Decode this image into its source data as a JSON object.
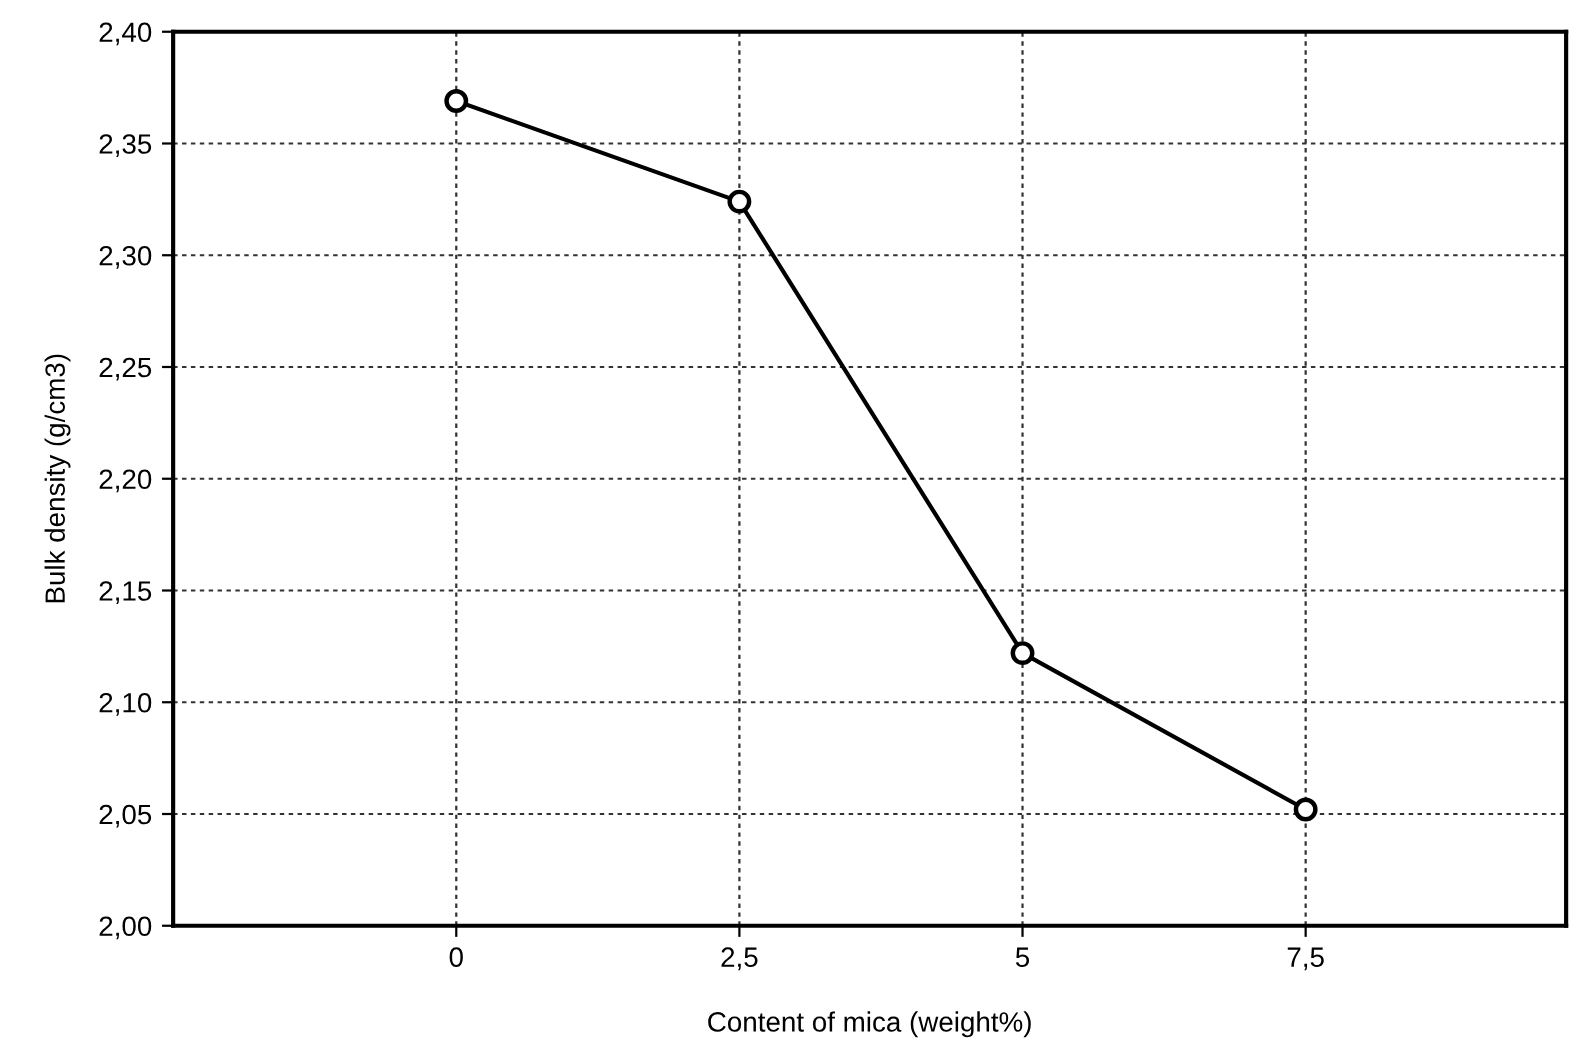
{
  "chart_data": {
    "type": "line",
    "xlabel": "Content of mica (weight%)",
    "ylabel": "Bulk density (g/cm3)",
    "x": [
      0,
      2.5,
      5,
      7.5
    ],
    "series": [
      {
        "color": "#000000",
        "values": [
          2.369,
          2.324,
          2.122,
          2.052
        ]
      }
    ],
    "xlim": [
      -2.5,
      9.8
    ],
    "xticks": [
      0,
      {
        "value": 2.5,
        "label": "2,5"
      },
      5,
      {
        "value": 7.5,
        "label": "7,5"
      }
    ],
    "ylim": [
      2.0,
      2.4
    ],
    "yticks": [
      {
        "value": 2.0,
        "label": "2,00"
      },
      {
        "value": 2.05,
        "label": "2,05"
      },
      {
        "value": 2.1,
        "label": "2,10"
      },
      {
        "value": 2.15,
        "label": "2,15"
      },
      {
        "value": 2.2,
        "label": "2,20"
      },
      {
        "value": 2.25,
        "label": "2,25"
      },
      {
        "value": 2.3,
        "label": "2,30"
      },
      {
        "value": 2.35,
        "label": "2,35"
      },
      {
        "value": 2.4,
        "label": "2,40"
      }
    ],
    "grid": true,
    "marker": "circle",
    "line_style": "solid"
  }
}
